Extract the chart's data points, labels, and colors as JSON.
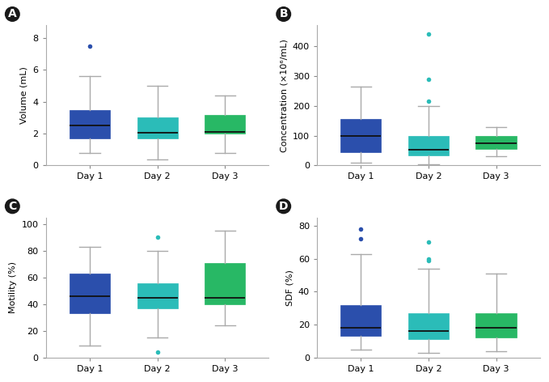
{
  "panels": [
    "A",
    "B",
    "C",
    "D"
  ],
  "colors": {
    "day1": "#2b4fac",
    "day2": "#2bbcb8",
    "day3": "#28b865"
  },
  "panel_A": {
    "ylabel": "Volume (mL)",
    "ylim": [
      0,
      8.8
    ],
    "yticks": [
      0,
      2,
      4,
      6,
      8
    ],
    "days": {
      "Day 1": {
        "whislo": 0.8,
        "q1": 1.7,
        "med": 2.5,
        "q3": 3.5,
        "whishi": 5.6,
        "fliers": [
          7.5
        ]
      },
      "Day 2": {
        "whislo": 0.4,
        "q1": 1.7,
        "med": 2.05,
        "q3": 3.0,
        "whishi": 5.0,
        "fliers": []
      },
      "Day 3": {
        "whislo": 0.8,
        "q1": 2.0,
        "med": 2.1,
        "q3": 3.2,
        "whishi": 4.4,
        "fliers": []
      }
    }
  },
  "panel_B": {
    "ylabel": "Concentration (×10⁶/mL)",
    "ylim": [
      0,
      470
    ],
    "yticks": [
      0,
      100,
      200,
      300,
      400
    ],
    "days": {
      "Day 1": {
        "whislo": 10,
        "q1": 45,
        "med": 100,
        "q3": 155,
        "whishi": 265,
        "fliers": []
      },
      "Day 2": {
        "whislo": 5,
        "q1": 35,
        "med": 53,
        "q3": 100,
        "whishi": 200,
        "fliers": [
          215,
          290,
          440
        ]
      },
      "Day 3": {
        "whislo": 30,
        "q1": 55,
        "med": 75,
        "q3": 100,
        "whishi": 128,
        "fliers": []
      }
    }
  },
  "panel_C": {
    "ylabel": "Motility (%)",
    "ylim": [
      0,
      105
    ],
    "yticks": [
      0,
      20,
      40,
      60,
      80,
      100
    ],
    "days": {
      "Day 1": {
        "whislo": 9,
        "q1": 33,
        "med": 46,
        "q3": 63,
        "whishi": 83,
        "fliers": []
      },
      "Day 2": {
        "whislo": 15,
        "q1": 37,
        "med": 45,
        "q3": 56,
        "whishi": 80,
        "fliers": [
          4,
          90
        ]
      },
      "Day 3": {
        "whislo": 24,
        "q1": 40,
        "med": 45,
        "q3": 71,
        "whishi": 95,
        "fliers": []
      }
    }
  },
  "panel_D": {
    "ylabel": "SDF (%)",
    "ylim": [
      0,
      85
    ],
    "yticks": [
      0,
      20,
      40,
      60,
      80
    ],
    "days": {
      "Day 1": {
        "whislo": 5,
        "q1": 13,
        "med": 18,
        "q3": 32,
        "whishi": 63,
        "fliers": [
          72,
          78
        ]
      },
      "Day 2": {
        "whislo": 3,
        "q1": 11,
        "med": 16,
        "q3": 27,
        "whishi": 54,
        "fliers": [
          59,
          60,
          70
        ]
      },
      "Day 3": {
        "whislo": 4,
        "q1": 12,
        "med": 18,
        "q3": 27,
        "whishi": 51,
        "fliers": []
      }
    }
  },
  "background_color": "#ffffff",
  "whisker_color": "#aaaaaa",
  "median_color": "#111111",
  "flier_size": 4,
  "box_width": 0.6,
  "tick_labelsize": 8,
  "ylabel_fontsize": 8
}
